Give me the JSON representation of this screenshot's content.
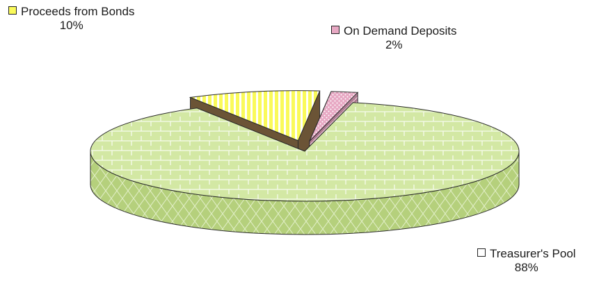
{
  "chart_data": {
    "type": "pie",
    "style": "3d-exploded",
    "slices": [
      {
        "label": "Treasurer's Pool",
        "value": 88,
        "display": "88%",
        "color": "#d3e8a4",
        "side_color": "#b5d07c"
      },
      {
        "label": "Proceeds from Bonds",
        "value": 10,
        "display": "10%",
        "color": "#fafa5a",
        "side_color": "#6b5436"
      },
      {
        "label": "On Demand Deposits",
        "value": 2,
        "display": "2%",
        "color": "#e7a8c3",
        "side_color": "#b07a92"
      }
    ]
  }
}
